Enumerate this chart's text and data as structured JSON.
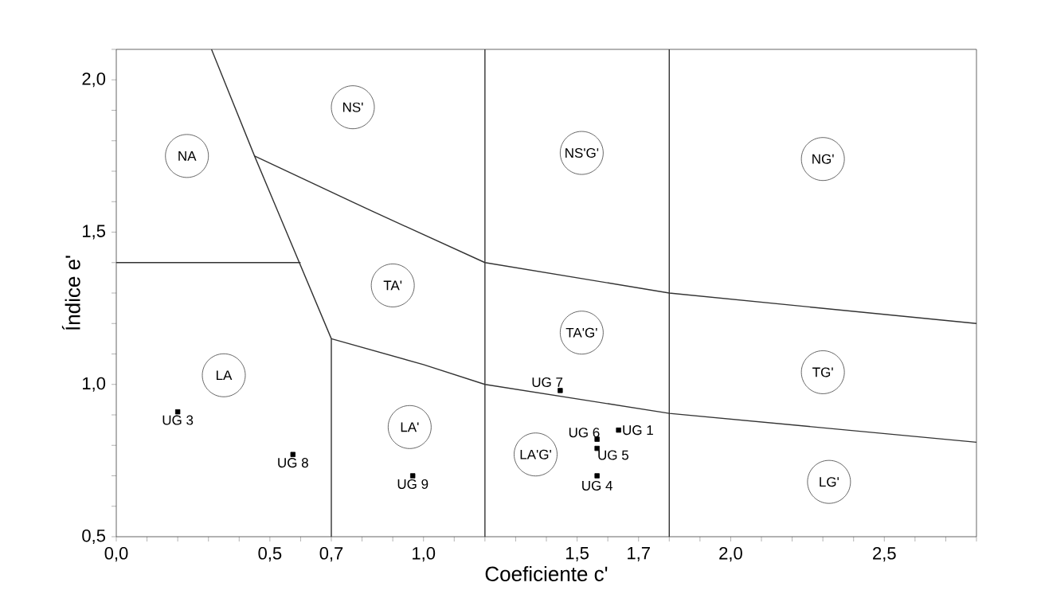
{
  "chart_data": {
    "type": "line",
    "xlabel": "Coeficiente c'",
    "ylabel": "Índice e'",
    "xlim": [
      0,
      2.8
    ],
    "ylim": [
      0.5,
      2.1
    ],
    "xticks": [
      {
        "value": 0,
        "label": "0,0"
      },
      {
        "value": 0.1,
        "label": null
      },
      {
        "value": 0.2,
        "label": null
      },
      {
        "value": 0.3,
        "label": null
      },
      {
        "value": 0.4,
        "label": null
      },
      {
        "value": 0.5,
        "label": "0,5"
      },
      {
        "value": 0.6,
        "label": null
      },
      {
        "value": 0.7,
        "label": "0,7"
      },
      {
        "value": 0.8,
        "label": null
      },
      {
        "value": 0.9,
        "label": null
      },
      {
        "value": 1.0,
        "label": "1,0"
      },
      {
        "value": 1.1,
        "label": null
      },
      {
        "value": 1.2,
        "label": null
      },
      {
        "value": 1.3,
        "label": null
      },
      {
        "value": 1.4,
        "label": null
      },
      {
        "value": 1.5,
        "label": "1,5"
      },
      {
        "value": 1.6,
        "label": null
      },
      {
        "value": 1.7,
        "label": "1,7"
      },
      {
        "value": 1.8,
        "label": null
      },
      {
        "value": 1.9,
        "label": null
      },
      {
        "value": 2.0,
        "label": "2,0"
      },
      {
        "value": 2.1,
        "label": null
      },
      {
        "value": 2.2,
        "label": null
      },
      {
        "value": 2.3,
        "label": null
      },
      {
        "value": 2.4,
        "label": null
      },
      {
        "value": 2.5,
        "label": "2,5"
      },
      {
        "value": 2.6,
        "label": null
      },
      {
        "value": 2.7,
        "label": null
      },
      {
        "value": 2.8,
        "label": null
      }
    ],
    "yticks": [
      {
        "value": 0.5,
        "label": "0,5"
      },
      {
        "value": 0.6,
        "label": null
      },
      {
        "value": 0.7,
        "label": null
      },
      {
        "value": 0.8,
        "label": null
      },
      {
        "value": 0.9,
        "label": null
      },
      {
        "value": 1.0,
        "label": "1,0"
      },
      {
        "value": 1.1,
        "label": null
      },
      {
        "value": 1.2,
        "label": null
      },
      {
        "value": 1.3,
        "label": null
      },
      {
        "value": 1.4,
        "label": null
      },
      {
        "value": 1.5,
        "label": "1,5"
      },
      {
        "value": 1.6,
        "label": null
      },
      {
        "value": 1.7,
        "label": null
      },
      {
        "value": 1.8,
        "label": null
      },
      {
        "value": 1.9,
        "label": null
      },
      {
        "value": 2.0,
        "label": "2,0"
      },
      {
        "value": 2.1,
        "label": null
      }
    ],
    "grid": false,
    "series": [
      {
        "color": "#333333",
        "x": [
          0,
          0.6
        ],
        "values": [
          1.4,
          1.4
        ]
      },
      {
        "color": "#333333",
        "x": [
          0.31,
          0.45,
          0.7,
          0.7
        ],
        "values": [
          2.1,
          1.75,
          1.15,
          0.5
        ]
      },
      {
        "color": "#333333",
        "x": [
          0.45,
          0.83,
          1.2,
          1.8,
          2.8
        ],
        "values": [
          1.75,
          1.57,
          1.4,
          1.3,
          1.2
        ]
      },
      {
        "color": "#333333",
        "x": [
          0.7,
          1.0,
          1.2,
          1.8,
          2.8
        ],
        "values": [
          1.15,
          1.065,
          1.0,
          0.905,
          0.81
        ]
      },
      {
        "type": "scatter",
        "marker": "square",
        "color": "#000000",
        "x": [
          0.2,
          0.575,
          0.965,
          1.445,
          1.565,
          1.635,
          1.565,
          1.565
        ],
        "values": [
          0.91,
          0.77,
          0.7,
          0.98,
          0.82,
          0.85,
          0.79,
          0.7
        ],
        "value_labels": [
          "UG 3",
          "UG 8",
          "UG 9",
          "UG 7",
          "UG 6",
          "UG 1",
          "UG 5",
          "UG 4"
        ]
      }
    ],
    "ref_lines": [
      {
        "axis": "x",
        "value": 1.2,
        "color": "#333333"
      },
      {
        "axis": "x",
        "value": 1.8,
        "color": "#333333"
      }
    ],
    "annotations": [
      {
        "text": "NA",
        "x": 0.23,
        "y": 1.75
      },
      {
        "text": "NS'",
        "x": 0.77,
        "y": 1.91
      },
      {
        "text": "TA'",
        "x": 0.9,
        "y": 1.325
      },
      {
        "text": "LA",
        "x": 0.35,
        "y": 1.03
      },
      {
        "text": "LA'",
        "x": 0.955,
        "y": 0.86
      },
      {
        "text": "NS'G'",
        "x": 1.515,
        "y": 1.76
      },
      {
        "text": "NG'",
        "x": 2.3,
        "y": 1.74
      },
      {
        "text": "TA'G'",
        "x": 1.515,
        "y": 1.17
      },
      {
        "text": "TG'",
        "x": 2.3,
        "y": 1.04
      },
      {
        "text": "LA'G'",
        "x": 1.365,
        "y": 0.77
      },
      {
        "text": "LG'",
        "x": 2.32,
        "y": 0.68
      }
    ]
  }
}
